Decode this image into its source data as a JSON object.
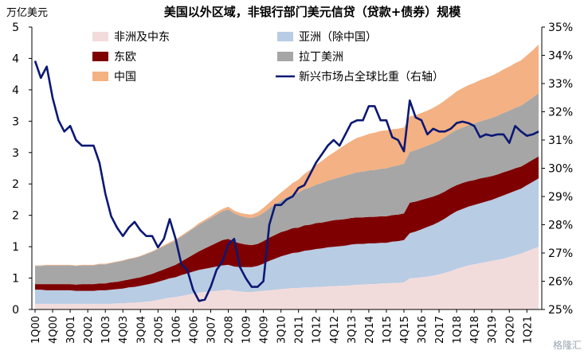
{
  "chart_data": {
    "type": "area",
    "title": "美国以外区域，非银行部门美元信贷（贷款+债券）规模",
    "y_unit_label": "万亿美元",
    "ylim_left": [
      0,
      5
    ],
    "yticks_left": [
      "0",
      "1",
      "1",
      "2",
      "2",
      "3",
      "3",
      "4",
      "4",
      "5"
    ],
    "ylim_right": [
      25,
      35
    ],
    "yticks_right": [
      "25%",
      "26%",
      "27%",
      "28%",
      "29%",
      "30%",
      "31%",
      "32%",
      "33%",
      "34%",
      "35%"
    ],
    "x_tick_labels": [
      "1Q00",
      "4Q00",
      "3Q01",
      "2Q02",
      "1Q03",
      "4Q03",
      "3Q04",
      "2Q05",
      "1Q06",
      "4Q06",
      "3Q07",
      "2Q08",
      "1Q09",
      "4Q09",
      "3Q10",
      "2Q11",
      "1Q12",
      "4Q12",
      "3Q13",
      "2Q14",
      "1Q15",
      "4Q15",
      "3Q16",
      "2Q17",
      "1Q18",
      "4Q18",
      "3Q19",
      "2Q20",
      "1Q21"
    ],
    "x": [
      "1Q00",
      "2Q00",
      "3Q00",
      "4Q00",
      "1Q01",
      "2Q01",
      "3Q01",
      "4Q01",
      "1Q02",
      "2Q02",
      "3Q02",
      "4Q02",
      "1Q03",
      "2Q03",
      "3Q03",
      "4Q03",
      "1Q04",
      "2Q04",
      "3Q04",
      "4Q04",
      "1Q05",
      "2Q05",
      "3Q05",
      "4Q05",
      "1Q06",
      "2Q06",
      "3Q06",
      "4Q06",
      "1Q07",
      "2Q07",
      "3Q07",
      "4Q07",
      "1Q08",
      "2Q08",
      "3Q08",
      "4Q08",
      "1Q09",
      "2Q09",
      "3Q09",
      "4Q09",
      "1Q10",
      "2Q10",
      "3Q10",
      "4Q10",
      "1Q11",
      "2Q11",
      "3Q11",
      "4Q11",
      "1Q12",
      "2Q12",
      "3Q12",
      "4Q12",
      "1Q13",
      "2Q13",
      "3Q13",
      "4Q13",
      "1Q14",
      "2Q14",
      "3Q14",
      "4Q14",
      "1Q15",
      "2Q15",
      "3Q15",
      "4Q15",
      "1Q16",
      "2Q16",
      "3Q16",
      "4Q16",
      "1Q17",
      "2Q17",
      "3Q17",
      "4Q17",
      "1Q18",
      "2Q18",
      "3Q18",
      "4Q18",
      "1Q19",
      "2Q19",
      "3Q19",
      "4Q19",
      "1Q20",
      "2Q20",
      "3Q20",
      "4Q20",
      "1Q21",
      "2Q21",
      "3Q21"
    ],
    "stacked_series": [
      {
        "name": "非洲及中东",
        "color": "#f2dcdb",
        "values": [
          0.1,
          0.1,
          0.1,
          0.1,
          0.1,
          0.1,
          0.1,
          0.1,
          0.1,
          0.1,
          0.1,
          0.1,
          0.1,
          0.1,
          0.11,
          0.11,
          0.12,
          0.12,
          0.13,
          0.14,
          0.15,
          0.17,
          0.19,
          0.21,
          0.22,
          0.24,
          0.26,
          0.28,
          0.3,
          0.31,
          0.32,
          0.33,
          0.34,
          0.35,
          0.33,
          0.32,
          0.31,
          0.31,
          0.32,
          0.33,
          0.34,
          0.35,
          0.36,
          0.37,
          0.38,
          0.38,
          0.39,
          0.39,
          0.4,
          0.4,
          0.41,
          0.41,
          0.42,
          0.42,
          0.43,
          0.44,
          0.44,
          0.45,
          0.45,
          0.46,
          0.46,
          0.47,
          0.47,
          0.48,
          0.55,
          0.56,
          0.57,
          0.58,
          0.6,
          0.62,
          0.65,
          0.68,
          0.72,
          0.75,
          0.78,
          0.8,
          0.82,
          0.84,
          0.86,
          0.88,
          0.9,
          0.93,
          0.96,
          0.99,
          1.03,
          1.07,
          1.11
        ]
      },
      {
        "name": "亚洲（除中国）",
        "color": "#b8cce4",
        "values": [
          0.25,
          0.25,
          0.24,
          0.24,
          0.24,
          0.24,
          0.24,
          0.23,
          0.23,
          0.23,
          0.23,
          0.24,
          0.24,
          0.25,
          0.25,
          0.26,
          0.27,
          0.28,
          0.29,
          0.3,
          0.31,
          0.32,
          0.33,
          0.34,
          0.35,
          0.37,
          0.38,
          0.39,
          0.4,
          0.41,
          0.42,
          0.43,
          0.44,
          0.44,
          0.43,
          0.43,
          0.44,
          0.44,
          0.45,
          0.48,
          0.52,
          0.55,
          0.58,
          0.6,
          0.62,
          0.63,
          0.65,
          0.66,
          0.67,
          0.68,
          0.69,
          0.7,
          0.7,
          0.71,
          0.72,
          0.72,
          0.72,
          0.72,
          0.72,
          0.72,
          0.72,
          0.73,
          0.74,
          0.75,
          0.8,
          0.82,
          0.85,
          0.88,
          0.9,
          0.93,
          0.96,
          1.0,
          1.02,
          1.03,
          1.04,
          1.05,
          1.06,
          1.07,
          1.08,
          1.1,
          1.12,
          1.13,
          1.14,
          1.15,
          1.17,
          1.19,
          1.21
        ]
      },
      {
        "name": "东欧",
        "color": "#7f0000",
        "values": [
          0.1,
          0.1,
          0.11,
          0.11,
          0.11,
          0.11,
          0.11,
          0.11,
          0.12,
          0.12,
          0.12,
          0.12,
          0.12,
          0.13,
          0.13,
          0.14,
          0.14,
          0.15,
          0.15,
          0.16,
          0.17,
          0.18,
          0.19,
          0.2,
          0.22,
          0.24,
          0.27,
          0.3,
          0.33,
          0.36,
          0.39,
          0.42,
          0.45,
          0.46,
          0.44,
          0.42,
          0.4,
          0.39,
          0.39,
          0.4,
          0.41,
          0.42,
          0.43,
          0.43,
          0.44,
          0.44,
          0.45,
          0.45,
          0.46,
          0.46,
          0.46,
          0.47,
          0.47,
          0.47,
          0.47,
          0.47,
          0.47,
          0.47,
          0.47,
          0.47,
          0.47,
          0.47,
          0.47,
          0.47,
          0.54,
          0.53,
          0.52,
          0.51,
          0.5,
          0.49,
          0.48,
          0.47,
          0.46,
          0.46,
          0.45,
          0.44,
          0.44,
          0.43,
          0.42,
          0.41,
          0.41,
          0.4,
          0.4,
          0.39,
          0.39,
          0.39,
          0.39
        ]
      },
      {
        "name": "拉丁美洲",
        "color": "#a6a6a6",
        "values": [
          0.32,
          0.32,
          0.33,
          0.33,
          0.33,
          0.33,
          0.33,
          0.33,
          0.33,
          0.33,
          0.33,
          0.34,
          0.34,
          0.34,
          0.35,
          0.35,
          0.36,
          0.36,
          0.37,
          0.38,
          0.39,
          0.4,
          0.41,
          0.42,
          0.43,
          0.44,
          0.45,
          0.46,
          0.47,
          0.48,
          0.49,
          0.5,
          0.51,
          0.52,
          0.5,
          0.49,
          0.48,
          0.48,
          0.49,
          0.5,
          0.52,
          0.54,
          0.56,
          0.58,
          0.6,
          0.62,
          0.64,
          0.66,
          0.68,
          0.7,
          0.72,
          0.73,
          0.75,
          0.77,
          0.78,
          0.8,
          0.81,
          0.82,
          0.83,
          0.84,
          0.85,
          0.86,
          0.87,
          0.88,
          0.9,
          0.91,
          0.92,
          0.93,
          0.94,
          0.95,
          0.96,
          0.97,
          0.98,
          0.98,
          0.99,
          1.0,
          1.01,
          1.02,
          1.03,
          1.04,
          1.05,
          1.06,
          1.07,
          1.08,
          1.09,
          1.1,
          1.12
        ]
      },
      {
        "name": "中国",
        "color": "#f4b183",
        "values": [
          0.01,
          0.01,
          0.01,
          0.01,
          0.01,
          0.01,
          0.01,
          0.01,
          0.01,
          0.01,
          0.01,
          0.01,
          0.01,
          0.01,
          0.01,
          0.01,
          0.01,
          0.01,
          0.01,
          0.01,
          0.01,
          0.01,
          0.02,
          0.02,
          0.02,
          0.02,
          0.02,
          0.02,
          0.03,
          0.03,
          0.03,
          0.04,
          0.04,
          0.05,
          0.05,
          0.05,
          0.06,
          0.06,
          0.07,
          0.09,
          0.1,
          0.12,
          0.14,
          0.17,
          0.2,
          0.23,
          0.27,
          0.31,
          0.35,
          0.39,
          0.43,
          0.47,
          0.51,
          0.55,
          0.58,
          0.61,
          0.63,
          0.65,
          0.66,
          0.67,
          0.67,
          0.66,
          0.65,
          0.64,
          0.63,
          0.62,
          0.62,
          0.62,
          0.63,
          0.64,
          0.65,
          0.66,
          0.68,
          0.7,
          0.71,
          0.72,
          0.73,
          0.74,
          0.75,
          0.76,
          0.77,
          0.78,
          0.79,
          0.8,
          0.82,
          0.84,
          0.86
        ]
      }
    ],
    "line_series": {
      "name": "新兴市场占全球比重（右轴）",
      "color": "#0b1873",
      "axis": "right",
      "values": [
        33.8,
        33.2,
        33.6,
        32.5,
        31.7,
        31.3,
        31.5,
        31.0,
        30.8,
        30.8,
        30.8,
        30.2,
        29.1,
        28.3,
        27.9,
        27.6,
        27.9,
        28.1,
        27.8,
        27.6,
        27.6,
        27.2,
        27.5,
        28.2,
        27.5,
        26.6,
        26.4,
        25.7,
        25.3,
        25.35,
        25.8,
        26.4,
        26.7,
        27.3,
        27.5,
        26.5,
        26.1,
        25.8,
        25.8,
        26.0,
        28.0,
        28.7,
        28.7,
        28.9,
        29.0,
        29.3,
        29.4,
        29.8,
        30.2,
        30.5,
        30.8,
        31.0,
        30.8,
        31.2,
        31.6,
        31.7,
        31.7,
        32.2,
        32.2,
        31.7,
        31.7,
        31.1,
        31.0,
        30.6,
        32.4,
        31.8,
        31.7,
        31.2,
        31.4,
        31.3,
        31.3,
        31.4,
        31.6,
        31.65,
        31.6,
        31.5,
        31.1,
        31.2,
        31.15,
        31.2,
        31.2,
        30.9,
        31.5,
        31.3,
        31.15,
        31.2,
        31.3
      ]
    },
    "legend": [
      {
        "label": "非洲及中东",
        "kind": "swatch",
        "color": "#f2dcdb"
      },
      {
        "label": "亚洲（除中国）",
        "kind": "swatch",
        "color": "#b8cce4"
      },
      {
        "label": "东欧",
        "kind": "swatch",
        "color": "#7f0000"
      },
      {
        "label": "拉丁美洲",
        "kind": "swatch",
        "color": "#a6a6a6"
      },
      {
        "label": "中国",
        "kind": "swatch",
        "color": "#f4b183"
      },
      {
        "label": "新兴市场占全球比重（右轴）",
        "kind": "line",
        "color": "#0b1873"
      }
    ],
    "legend_placement": "top-inside",
    "grid": false
  },
  "watermark": "格隆汇"
}
